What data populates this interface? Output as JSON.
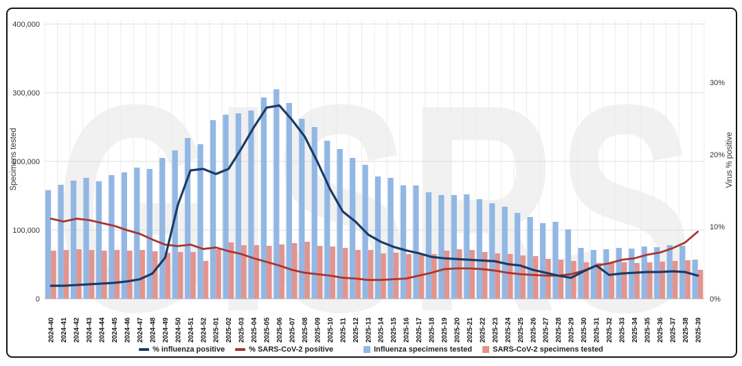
{
  "chart_data": {
    "type": "combo-bar-line",
    "watermark": "GISRS",
    "grid": true,
    "legend_position": "bottom",
    "categories": [
      "2024-40",
      "2024-41",
      "2024-42",
      "2024-43",
      "2024-44",
      "2024-45",
      "2024-46",
      "2024-47",
      "2024-48",
      "2024-49",
      "2024-50",
      "2024-51",
      "2024-52",
      "2025-01",
      "2025-02",
      "2025-03",
      "2025-04",
      "2025-05",
      "2025-06",
      "2025-07",
      "2025-08",
      "2025-09",
      "2025-10",
      "2025-11",
      "2025-12",
      "2025-13",
      "2025-14",
      "2025-15",
      "2025-16",
      "2025-17",
      "2025-18",
      "2025-19",
      "2025-20",
      "2025-21",
      "2025-22",
      "2025-23",
      "2025-24",
      "2025-25",
      "2025-26",
      "2025-27",
      "2025-28",
      "2025-29",
      "2025-30",
      "2025-31",
      "2025-32",
      "2025-33",
      "2025-34",
      "2025-35",
      "2025-36",
      "2025-37",
      "2025-38",
      "2025-39"
    ],
    "left_axis": {
      "label": "Specimens tested",
      "min": 0,
      "max": 400000,
      "ticks": [
        0,
        100000,
        200000,
        300000,
        400000
      ]
    },
    "right_axis": {
      "label": "Virus % positive",
      "min": 0,
      "max": 38,
      "ticks": [
        0,
        10,
        20,
        30
      ]
    },
    "series": [
      {
        "name": "% influenza positive",
        "type": "line",
        "axis": "right",
        "color": "#1c3a63",
        "values": [
          1.8,
          1.8,
          1.9,
          2.0,
          2.1,
          2.2,
          2.4,
          2.7,
          3.5,
          5.7,
          13.0,
          17.8,
          18.0,
          17.3,
          18.0,
          20.8,
          23.8,
          26.5,
          26.8,
          24.8,
          22.5,
          19.0,
          15.2,
          12.1,
          10.7,
          8.9,
          7.9,
          7.2,
          6.7,
          6.3,
          5.8,
          5.6,
          5.5,
          5.4,
          5.3,
          5.2,
          4.8,
          4.6,
          4.0,
          3.6,
          3.2,
          2.9,
          3.8,
          4.6,
          3.3,
          3.5,
          3.6,
          3.7,
          3.7,
          3.8,
          3.7,
          3.2
        ]
      },
      {
        "name": "% SARS-CoV-2 positive",
        "type": "line",
        "axis": "right",
        "color": "#a9352e",
        "values": [
          11.1,
          10.7,
          11.1,
          10.9,
          10.5,
          10.1,
          9.5,
          9.0,
          8.2,
          7.5,
          7.3,
          7.5,
          6.9,
          7.1,
          6.6,
          6.2,
          5.6,
          5.1,
          4.6,
          4.0,
          3.6,
          3.4,
          3.2,
          2.9,
          2.8,
          2.6,
          2.6,
          2.7,
          2.8,
          3.2,
          3.6,
          4.1,
          4.2,
          4.2,
          4.1,
          3.9,
          3.6,
          3.4,
          3.3,
          3.2,
          3.2,
          3.4,
          3.9,
          4.6,
          4.9,
          5.4,
          5.6,
          6.1,
          6.4,
          7.0,
          7.8,
          9.3
        ]
      },
      {
        "name": "Influenza specimens tested",
        "type": "bar",
        "axis": "left",
        "color": "#92b7e4",
        "values": [
          158000,
          166000,
          172000,
          176000,
          171000,
          180000,
          184000,
          191000,
          189000,
          205000,
          216000,
          234000,
          225000,
          260000,
          268000,
          270000,
          274000,
          293000,
          305000,
          285000,
          262000,
          250000,
          230000,
          218000,
          205000,
          195000,
          178000,
          176000,
          165000,
          165000,
          155000,
          151000,
          151000,
          152000,
          145000,
          139000,
          134000,
          125000,
          119000,
          110000,
          112000,
          101000,
          74000,
          71000,
          72000,
          74000,
          73000,
          76000,
          75000,
          78000,
          77000,
          57000
        ]
      },
      {
        "name": "SARS-CoV-2 specimens tested",
        "type": "bar",
        "axis": "left",
        "color": "#e2948f",
        "values": [
          70000,
          71000,
          72000,
          71000,
          70000,
          71000,
          70000,
          71000,
          69000,
          67000,
          68000,
          68000,
          55000,
          72000,
          82000,
          78000,
          78000,
          77000,
          79000,
          81000,
          83000,
          77000,
          76000,
          74000,
          71000,
          71000,
          66000,
          67000,
          65000,
          64000,
          65000,
          70000,
          72000,
          71000,
          68000,
          66000,
          65000,
          63000,
          62000,
          58000,
          57000,
          55000,
          53000,
          52000,
          52000,
          53000,
          52000,
          53000,
          54000,
          55000,
          56000,
          42000
        ]
      }
    ]
  }
}
